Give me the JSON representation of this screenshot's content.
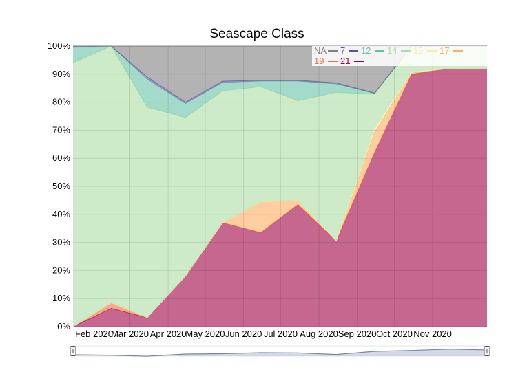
{
  "chart_data": {
    "type": "area",
    "stacked": true,
    "normalized": true,
    "title": "Seascape Class",
    "xlabel": "",
    "ylabel": "",
    "x": [
      "2020-01-15",
      "2020-02-15",
      "2020-03-15",
      "2020-04-15",
      "2020-05-15",
      "2020-06-15",
      "2020-07-15",
      "2020-08-15",
      "2020-09-15",
      "2020-10-15",
      "2020-11-15",
      "2020-12-15"
    ],
    "x_tick_labels": [
      "Feb 2020",
      "Mar 2020",
      "Apr 2020",
      "May 2020",
      "Jun 2020",
      "Jul 2020",
      "Aug 2020",
      "Sep 2020",
      "Oct 2020",
      "Nov 2020"
    ],
    "x_tick_dates": [
      "2020-02-01",
      "2020-03-01",
      "2020-04-01",
      "2020-05-01",
      "2020-06-01",
      "2020-07-01",
      "2020-08-01",
      "2020-09-01",
      "2020-10-01",
      "2020-11-01"
    ],
    "y_tick_labels": [
      "0%",
      "10%",
      "20%",
      "30%",
      "40%",
      "50%",
      "60%",
      "70%",
      "80%",
      "90%",
      "100%"
    ],
    "ylim": [
      0,
      100
    ],
    "grid": true,
    "legend_placement": "top-right",
    "series": [
      {
        "name": "21",
        "color": "#9e0142",
        "values": [
          0,
          6.5,
          3.2,
          18,
          37,
          33.5,
          43.5,
          30.5,
          62,
          90,
          92,
          92
        ]
      },
      {
        "name": "19",
        "color": "#f46d43",
        "values": [
          0,
          2,
          0,
          0,
          0,
          0,
          0,
          0,
          0,
          0,
          0,
          0
        ]
      },
      {
        "name": "17",
        "color": "#fdae61",
        "values": [
          0,
          0,
          0,
          0,
          0,
          11,
          1.5,
          0,
          7.5,
          0.5,
          0,
          0
        ]
      },
      {
        "name": "15",
        "color": "#ffffbf",
        "values": [
          0,
          0,
          0,
          0,
          0,
          0,
          0,
          0,
          0.8,
          0.2,
          0,
          0
        ]
      },
      {
        "name": "14",
        "color": "#abdda4",
        "values": [
          94,
          91.5,
          75,
          56.5,
          47,
          41,
          35.5,
          53,
          12.5,
          9.3,
          8,
          8
        ]
      },
      {
        "name": "12",
        "color": "#66c2a5",
        "values": [
          5.5,
          0,
          10,
          5,
          3,
          2,
          7,
          3,
          0.3,
          0,
          0,
          0
        ]
      },
      {
        "name": "7",
        "color": "#5e4fa2",
        "values": [
          0.5,
          0,
          0.8,
          0.5,
          0.5,
          0.3,
          0.3,
          0.4,
          0.2,
          0,
          0,
          0
        ]
      },
      {
        "name": "NA",
        "color": "#808080",
        "values": [
          0,
          0,
          11,
          20,
          12.5,
          12.2,
          12.2,
          13.1,
          16.7,
          0,
          0,
          0
        ]
      }
    ],
    "legend_order": [
      "NA",
      "7",
      "12",
      "14",
      "15",
      "17",
      "19",
      "21"
    ]
  }
}
